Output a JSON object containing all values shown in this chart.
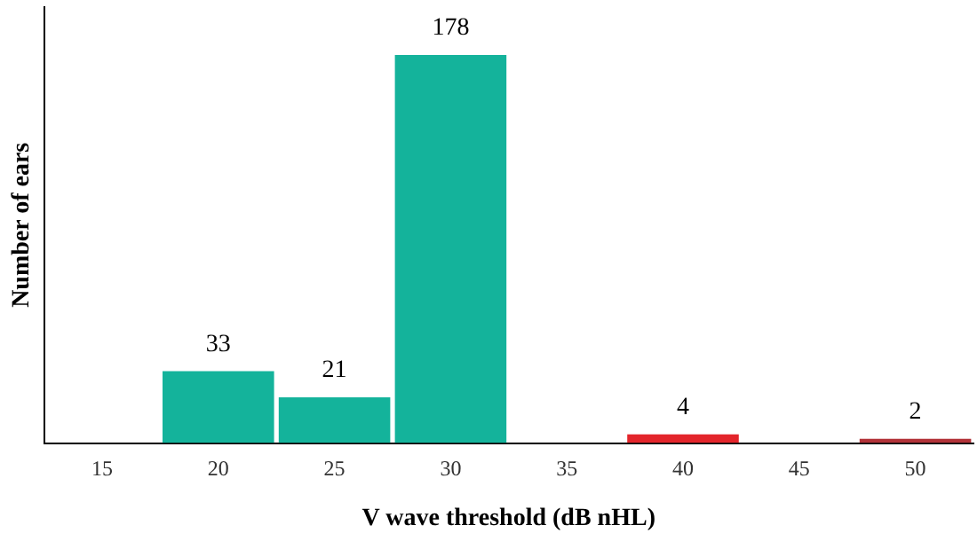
{
  "chart_data": {
    "type": "bar",
    "xlabel": "V wave threshold (dB nHL)",
    "ylabel": "Number of ears",
    "categories": [
      "15",
      "20",
      "25",
      "30",
      "35",
      "40",
      "45",
      "50"
    ],
    "values": [
      null,
      33,
      21,
      178,
      null,
      4,
      null,
      2
    ],
    "colors": [
      "#14b39b",
      "#14b39b",
      "#14b39b",
      "#14b39b",
      "#14b39b",
      "#e3252b",
      "#14b39b",
      "#b23339"
    ],
    "data_labels": true,
    "grid": false,
    "legend": false,
    "tick_labels": "x"
  }
}
